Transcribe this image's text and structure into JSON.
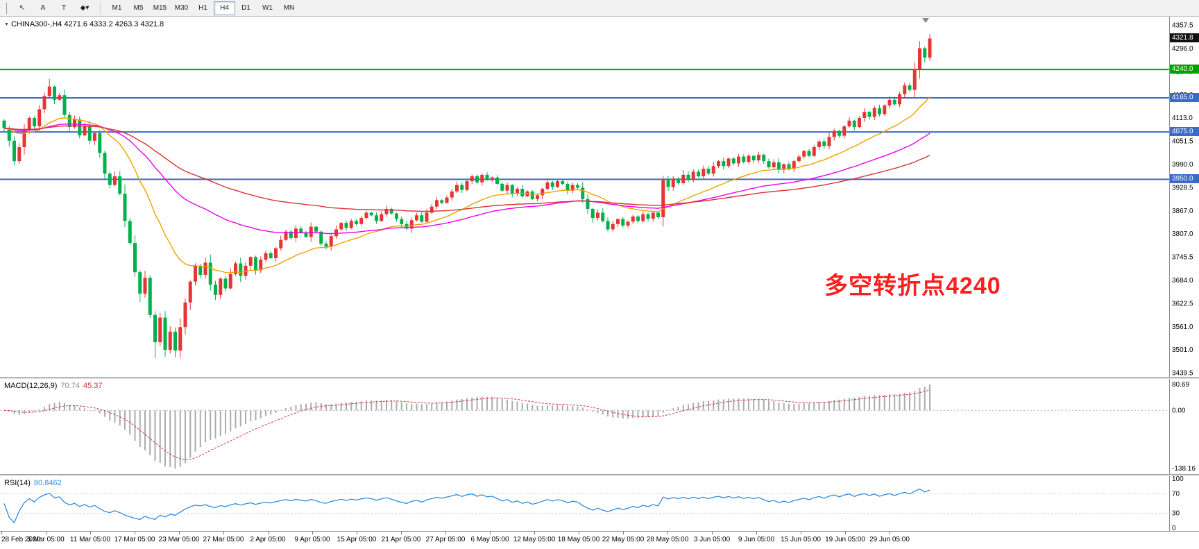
{
  "toolbar": {
    "tools": [
      {
        "name": "cursor",
        "glyph": "↖"
      },
      {
        "name": "text",
        "glyph": "A"
      },
      {
        "name": "label",
        "glyph": "T"
      },
      {
        "name": "shapes",
        "glyph": "◆▾"
      }
    ],
    "timeframes": [
      {
        "label": "M1"
      },
      {
        "label": "M5"
      },
      {
        "label": "M15"
      },
      {
        "label": "M30"
      },
      {
        "label": "H1"
      },
      {
        "label": "H4",
        "active": true
      },
      {
        "label": "D1"
      },
      {
        "label": "W1"
      },
      {
        "label": "MN"
      }
    ]
  },
  "chart": {
    "title_symbol": "CHINA300-,H4",
    "title_ohlc": "4271.6 4333.2 4263.3 4321.8",
    "annotation": {
      "text": "多空转折点4240",
      "color": "#ff1e1e"
    },
    "price_tags": [
      {
        "text": "4321.8",
        "price": 4321.8,
        "bg": "#111111"
      },
      {
        "text": "4240.0",
        "price": 4240.0,
        "bg": "#00a000"
      },
      {
        "text": "4165.0",
        "price": 4165.0,
        "bg": "#3a6bc8"
      },
      {
        "text": "4075.0",
        "price": 4075.0,
        "bg": "#3a6bc8"
      },
      {
        "text": "3950.0",
        "price": 3950.0,
        "bg": "#3a6bc8"
      }
    ],
    "time_labels": [
      "28 Feb 2020",
      "5 Mar 05:00",
      "11 Mar 05:00",
      "17 Mar 05:00",
      "23 Mar 05:00",
      "27 Mar 05:00",
      "2 Apr 05:00",
      "9 Apr 05:00",
      "15 Apr 05:00",
      "21 Apr 05:00",
      "27 Apr 05:00",
      "6 May 05:00",
      "12 May 05:00",
      "18 May 05:00",
      "22 May 05:00",
      "28 May 05:00",
      "3 Jun 05:00",
      "9 Jun 05:00",
      "15 Jun 05:00",
      "19 Jun 05:00",
      "29 Jun 05:00"
    ]
  },
  "chart_data": {
    "type": "candlestick",
    "symbol": "CHINA300-",
    "period": "H4",
    "title": "CHINA300-,H4",
    "current_bar": {
      "open": 4271.6,
      "high": 4333.2,
      "low": 4263.3,
      "close": 4321.8
    },
    "axis_range": [
      3439.5,
      4357.5
    ],
    "price_axis_ticks": [
      4357.5,
      4296.0,
      4234.5,
      4173.0,
      4113.0,
      4051.5,
      3990.0,
      3928.5,
      3867.0,
      3807.0,
      3745.5,
      3684.0,
      3622.5,
      3561.0,
      3501.0,
      3439.5
    ],
    "horizontal_levels": [
      {
        "price": 4240.0,
        "color": "#00a000"
      },
      {
        "price": 4165.0,
        "color": "#3a6bc8"
      },
      {
        "price": 4075.0,
        "color": "#3a6bc8"
      },
      {
        "price": 3950.0,
        "color": "#3a6bc8"
      }
    ],
    "candle_colors": {
      "up": "#e53535",
      "down": "#00b14c"
    },
    "moving_averages": [
      {
        "period": 21,
        "color": "#f0a000"
      },
      {
        "period": 55,
        "color": "#ee00ee"
      },
      {
        "period": 100,
        "color": "#d93030"
      }
    ],
    "open_first": 4105,
    "closes": [
      4085,
      4052,
      3998,
      4035,
      4080,
      4112,
      4090,
      4135,
      4170,
      4195,
      4160,
      4172,
      4120,
      4088,
      4108,
      4066,
      4090,
      4052,
      4072,
      4020,
      3965,
      3935,
      3958,
      3912,
      3840,
      3782,
      3705,
      3648,
      3690,
      3592,
      3520,
      3585,
      3500,
      3548,
      3498,
      3560,
      3625,
      3680,
      3722,
      3698,
      3730,
      3672,
      3645,
      3688,
      3662,
      3700,
      3728,
      3695,
      3722,
      3745,
      3710,
      3738,
      3755,
      3742,
      3768,
      3790,
      3812,
      3795,
      3820,
      3808,
      3798,
      3825,
      3812,
      3780,
      3772,
      3800,
      3818,
      3835,
      3822,
      3840,
      3832,
      3848,
      3862,
      3855,
      3840,
      3858,
      3872,
      3860,
      3845,
      3832,
      3820,
      3842,
      3855,
      3838,
      3862,
      3878,
      3895,
      3888,
      3902,
      3918,
      3935,
      3922,
      3945,
      3958,
      3942,
      3962,
      3948,
      3955,
      3938,
      3920,
      3935,
      3912,
      3925,
      3905,
      3918,
      3898,
      3908,
      3925,
      3942,
      3930,
      3945,
      3938,
      3920,
      3935,
      3928,
      3898,
      3872,
      3848,
      3862,
      3840,
      3818,
      3832,
      3845,
      3828,
      3838,
      3852,
      3840,
      3858,
      3846,
      3862,
      3850,
      3948,
      3930,
      3952,
      3940,
      3962,
      3948,
      3970,
      3958,
      3978,
      3965,
      3985,
      3998,
      3985,
      4005,
      3992,
      4010,
      3996,
      4012,
      4000,
      4015,
      3998,
      3982,
      3995,
      3975,
      3990,
      3978,
      3998,
      4010,
      4025,
      4012,
      4035,
      4050,
      4038,
      4062,
      4078,
      4065,
      4090,
      4105,
      4088,
      4112,
      4128,
      4115,
      4138,
      4122,
      4145,
      4160,
      4148,
      4175,
      4198,
      4186,
      4240,
      4296,
      4271.6,
      4321.8
    ],
    "wick_overrides": {
      "9": {
        "high": 4215
      },
      "30": {
        "low": 3478
      },
      "32": {
        "low": 3482
      },
      "34": {
        "low": 3480
      },
      "184": {
        "high": 4333.2,
        "low": 4263.3
      }
    }
  },
  "macd": {
    "label": "MACD(12,26,9)",
    "value_main": "70.74",
    "value_signal": "45.37",
    "axis_labels": [
      "80.69",
      "0.00",
      "-138.16"
    ],
    "fast": 12,
    "slow": 26,
    "signal": 9,
    "histogram_color": "#ababab",
    "signal_color": "#d33030"
  },
  "rsi": {
    "label": "RSI(14)",
    "value": "80.8462",
    "period": 14,
    "axis_labels": [
      "100",
      "70",
      "30",
      "0"
    ],
    "levels": [
      70,
      30
    ],
    "line_color": "#2e8be0"
  }
}
